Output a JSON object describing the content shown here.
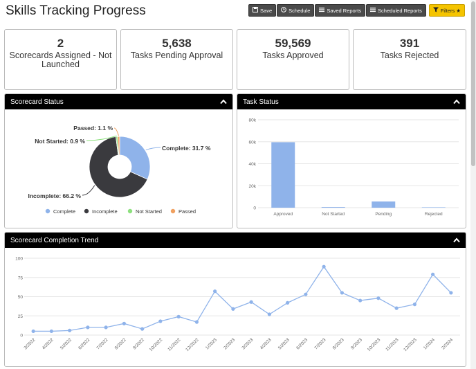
{
  "page": {
    "title": "Skills Tracking Progress"
  },
  "toolbar": {
    "save": {
      "label": "Save",
      "icon": "save-icon"
    },
    "schedule": {
      "label": "Schedule",
      "icon": "clock-icon"
    },
    "saved_reports": {
      "label": "Saved Reports",
      "icon": "list-icon"
    },
    "scheduled_reports": {
      "label": "Scheduled Reports",
      "icon": "list-icon"
    },
    "filters": {
      "label": "Filters",
      "icon": "filter-icon",
      "star": "★"
    }
  },
  "kpis": [
    {
      "value": "2",
      "label": "Scorecards Assigned - Not Launched"
    },
    {
      "value": "5,638",
      "label": "Tasks Pending Approval"
    },
    {
      "value": "59,569",
      "label": "Tasks Approved"
    },
    {
      "value": "391",
      "label": "Tasks Rejected"
    }
  ],
  "panels": {
    "scorecard_status": {
      "title": "Scorecard Status"
    },
    "task_status": {
      "title": "Task Status"
    },
    "completion_trend": {
      "title": "Scorecard Completion Trend"
    }
  },
  "colors": {
    "complete": "#8fb3ea",
    "incomplete": "#3a3a3e",
    "not_started": "#8de07e",
    "passed": "#f0a060",
    "line": "#8fb3ea",
    "accent": "#f5c400"
  },
  "chart_data": [
    {
      "type": "pie",
      "variant": "donut",
      "title": "",
      "categories": [
        "Complete",
        "Incomplete",
        "Not Started",
        "Passed"
      ],
      "values": [
        31.7,
        66.2,
        0.9,
        1.1
      ],
      "data_labels": [
        "Complete: 31.7 %",
        "Incomplete: 66.2 %",
        "Not Started: 0.9 %",
        "Passed: 1.1 %"
      ],
      "legend": {
        "position": "bottom",
        "entries": [
          "Complete",
          "Incomplete",
          "Not Started",
          "Passed"
        ]
      }
    },
    {
      "type": "bar",
      "title": "",
      "categories": [
        "Approved",
        "Not Started",
        "Pending",
        "Rejected"
      ],
      "values": [
        59569,
        600,
        5638,
        391
      ],
      "ylim": [
        0,
        80000
      ],
      "yticks": [
        "0",
        "20k",
        "40k",
        "60k",
        "80k"
      ],
      "grid": true
    },
    {
      "type": "line",
      "title": "",
      "x": [
        "3/2022",
        "4/2022",
        "5/2022",
        "6/2022",
        "7/2022",
        "8/2022",
        "9/2022",
        "10/2022",
        "11/2022",
        "12/2022",
        "1/2023",
        "2/2023",
        "3/2023",
        "4/2023",
        "5/2023",
        "6/2023",
        "7/2023",
        "8/2023",
        "9/2023",
        "10/2023",
        "11/2023",
        "12/2023",
        "1/2024",
        "2/2024"
      ],
      "values": [
        5,
        5,
        6,
        10,
        10,
        15,
        8,
        18,
        24,
        17,
        57,
        34,
        43,
        27,
        42,
        53,
        89,
        55,
        45,
        48,
        35,
        40,
        79,
        55
      ],
      "ylim": [
        0,
        100
      ],
      "yticks": [
        "0",
        "25",
        "50",
        "75",
        "100"
      ],
      "grid": true
    }
  ]
}
